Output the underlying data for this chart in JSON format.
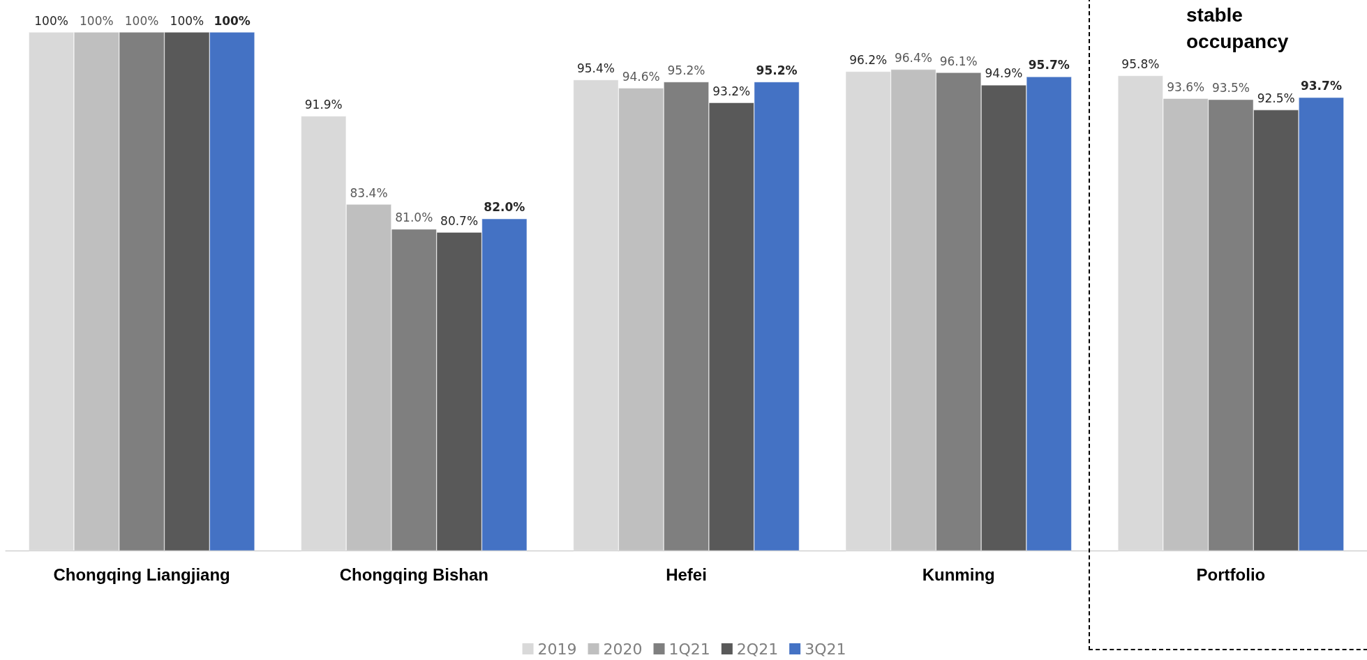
{
  "chart_data": {
    "type": "bar",
    "categories": [
      "Chongqing Liangjiang",
      "Chongqing Bishan",
      "Hefei",
      "Kunming",
      "Portfolio"
    ],
    "series": [
      {
        "name": "2019",
        "color": "#d9d9d9",
        "values": [
          100,
          91.9,
          95.4,
          96.2,
          95.8
        ],
        "value_labels": [
          "100%",
          "91.9%",
          "95.4%",
          "96.2%",
          "95.8%"
        ]
      },
      {
        "name": "2020",
        "color": "#bfbfbf",
        "values": [
          100,
          83.4,
          94.6,
          96.4,
          93.6
        ],
        "value_labels": [
          "100%",
          "83.4%",
          "94.6%",
          "96.4%",
          "93.6%"
        ]
      },
      {
        "name": "1Q21",
        "color": "#7f7f7f",
        "values": [
          100,
          81.0,
          95.2,
          96.1,
          93.5
        ],
        "value_labels": [
          "100%",
          "81.0%",
          "95.2%",
          "96.1%",
          "93.5%"
        ]
      },
      {
        "name": "2Q21",
        "color": "#595959",
        "values": [
          100,
          80.7,
          93.2,
          94.9,
          92.5
        ],
        "value_labels": [
          "100%",
          "80.7%",
          "93.2%",
          "94.9%",
          "92.5%"
        ]
      },
      {
        "name": "3Q21",
        "color": "#4472c4",
        "values": [
          100,
          82.0,
          95.2,
          95.7,
          93.7
        ],
        "value_labels": [
          "100%",
          "82.0%",
          "95.2%",
          "95.7%",
          "93.7%"
        ]
      }
    ],
    "ylim": [
      50,
      100
    ],
    "tick_labels": "x",
    "legend": "bottom",
    "annotations": [
      "stable\noccupancy"
    ]
  }
}
